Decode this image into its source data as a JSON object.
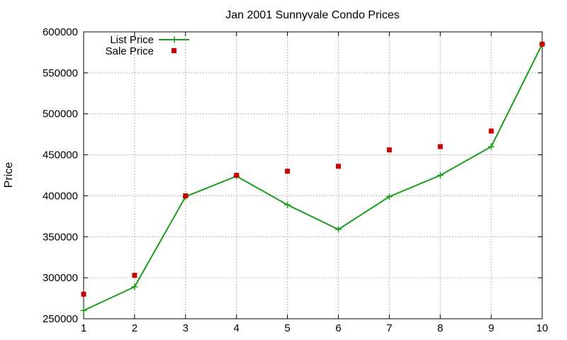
{
  "chart_data": {
    "type": "line",
    "title": "Jan 2001 Sunnyvale Condo Prices",
    "xlabel": "",
    "ylabel": "Price",
    "x": [
      1,
      2,
      3,
      4,
      5,
      6,
      7,
      8,
      9,
      10
    ],
    "xlim": [
      1,
      10
    ],
    "ylim": [
      250000,
      600000
    ],
    "x_ticks": [
      1,
      2,
      3,
      4,
      5,
      6,
      7,
      8,
      9,
      10
    ],
    "y_ticks": [
      250000,
      300000,
      350000,
      400000,
      450000,
      500000,
      550000,
      600000
    ],
    "grid": true,
    "legend_position": "top-left",
    "series": [
      {
        "name": "List Price",
        "style": "line-with-plus-markers",
        "color": "#1a9e1a",
        "values": [
          260000,
          289000,
          399000,
          424000,
          389000,
          359000,
          399000,
          425000,
          460000,
          585000
        ]
      },
      {
        "name": "Sale Price",
        "style": "square-points",
        "color": "#cc0000",
        "values": [
          280000,
          303000,
          400000,
          425000,
          430000,
          436000,
          456000,
          460000,
          479000,
          585000
        ]
      }
    ]
  }
}
